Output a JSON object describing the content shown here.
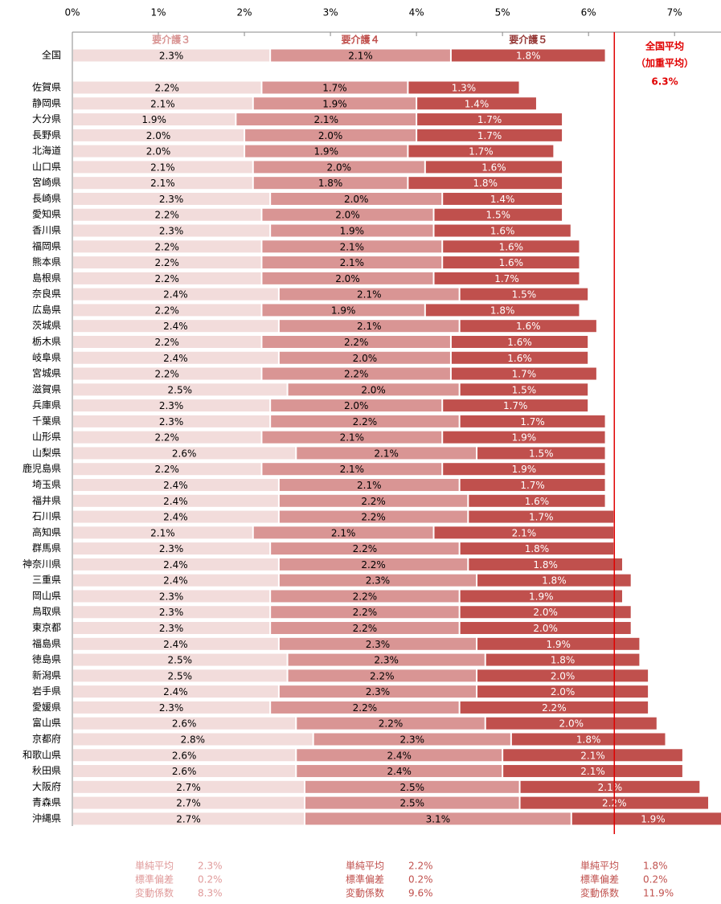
{
  "chart_data": {
    "type": "stacked_bar_horizontal",
    "categories": [
      "全国",
      "佐賀県",
      "静岡県",
      "大分県",
      "長野県",
      "北海道",
      "山口県",
      "宮崎県",
      "長崎県",
      "愛知県",
      "香川県",
      "福岡県",
      "熊本県",
      "島根県",
      "奈良県",
      "広島県",
      "茨城県",
      "栃木県",
      "岐阜県",
      "宮城県",
      "滋賀県",
      "兵庫県",
      "千葉県",
      "山形県",
      "山梨県",
      "鹿児島県",
      "埼玉県",
      "福井県",
      "石川県",
      "高知県",
      "群馬県",
      "神奈川県",
      "三重県",
      "岡山県",
      "鳥取県",
      "東京都",
      "福島県",
      "徳島県",
      "新潟県",
      "岩手県",
      "愛媛県",
      "富山県",
      "京都府",
      "和歌山県",
      "秋田県",
      "大阪府",
      "青森県",
      "沖縄県"
    ],
    "series": [
      {
        "name": "要介護３",
        "color": "#f2dcdb",
        "values": [
          2.3,
          2.2,
          2.1,
          1.9,
          2.0,
          2.0,
          2.1,
          2.1,
          2.3,
          2.2,
          2.3,
          2.2,
          2.2,
          2.2,
          2.4,
          2.2,
          2.4,
          2.2,
          2.4,
          2.2,
          2.5,
          2.3,
          2.3,
          2.2,
          2.6,
          2.2,
          2.4,
          2.4,
          2.4,
          2.1,
          2.3,
          2.4,
          2.4,
          2.3,
          2.3,
          2.3,
          2.4,
          2.5,
          2.5,
          2.4,
          2.3,
          2.6,
          2.8,
          2.6,
          2.6,
          2.7,
          2.7,
          2.7
        ],
        "value_labels": [
          "2.3%",
          "2.2%",
          "2.1%",
          "1.9%",
          "2.0%",
          "2.0%",
          "2.1%",
          "2.1%",
          "2.3%",
          "2.2%",
          "2.3%",
          "2.2%",
          "2.2%",
          "2.2%",
          "2.4%",
          "2.2%",
          "2.4%",
          "2.2%",
          "2.4%",
          "2.2%",
          "2.5%",
          "2.3%",
          "2.3%",
          "2.2%",
          "2.6%",
          "2.2%",
          "2.4%",
          "2.4%",
          "2.4%",
          "2.1%",
          "2.3%",
          "2.4%",
          "2.4%",
          "2.3%",
          "2.3%",
          "2.3%",
          "2.4%",
          "2.5%",
          "2.5%",
          "2.4%",
          "2.3%",
          "2.6%",
          "2.8%",
          "2.6%",
          "2.6%",
          "2.7%",
          "2.7%",
          "2.7%"
        ]
      },
      {
        "name": "要介護４",
        "color": "#d99594",
        "values": [
          2.1,
          1.7,
          1.9,
          2.1,
          2.0,
          1.9,
          2.0,
          1.8,
          2.0,
          2.0,
          1.9,
          2.1,
          2.1,
          2.0,
          2.1,
          1.9,
          2.1,
          2.2,
          2.0,
          2.2,
          2.0,
          2.0,
          2.2,
          2.1,
          2.1,
          2.1,
          2.1,
          2.2,
          2.2,
          2.1,
          2.2,
          2.2,
          2.3,
          2.2,
          2.2,
          2.2,
          2.3,
          2.3,
          2.2,
          2.3,
          2.2,
          2.2,
          2.3,
          2.4,
          2.4,
          2.5,
          2.5,
          3.1
        ],
        "value_labels": [
          "2.1%",
          "1.7%",
          "1.9%",
          "2.1%",
          "2.0%",
          "1.9%",
          "2.0%",
          "1.8%",
          "2.0%",
          "2.0%",
          "1.9%",
          "2.1%",
          "2.1%",
          "2.0%",
          "2.1%",
          "1.9%",
          "2.1%",
          "2.2%",
          "2.0%",
          "2.2%",
          "2.0%",
          "2.0%",
          "2.2%",
          "2.1%",
          "2.1%",
          "2.1%",
          "2.1%",
          "2.2%",
          "2.2%",
          "2.1%",
          "2.2%",
          "2.2%",
          "2.3%",
          "2.2%",
          "2.2%",
          "2.2%",
          "2.3%",
          "2.3%",
          "2.2%",
          "2.3%",
          "2.2%",
          "2.2%",
          "2.3%",
          "2.4%",
          "2.4%",
          "2.5%",
          "2.5%",
          "3.1%"
        ]
      },
      {
        "name": "要介護５",
        "color": "#c0504d",
        "values": [
          1.8,
          1.3,
          1.4,
          1.7,
          1.7,
          1.7,
          1.6,
          1.8,
          1.4,
          1.5,
          1.6,
          1.6,
          1.6,
          1.7,
          1.5,
          1.8,
          1.6,
          1.6,
          1.6,
          1.7,
          1.5,
          1.7,
          1.7,
          1.9,
          1.5,
          1.9,
          1.7,
          1.6,
          1.7,
          2.1,
          1.8,
          1.8,
          1.8,
          1.9,
          2.0,
          2.0,
          1.9,
          1.8,
          2.0,
          2.0,
          2.2,
          2.0,
          1.8,
          2.1,
          2.1,
          2.1,
          2.2,
          1.9
        ],
        "value_labels": [
          "1.8%",
          "1.3%",
          "1.4%",
          "1.7%",
          "1.7%",
          "1.7%",
          "1.6%",
          "1.8%",
          "1.4%",
          "1.5%",
          "1.6%",
          "1.6%",
          "1.6%",
          "1.7%",
          "1.5%",
          "1.8%",
          "1.6%",
          "1.6%",
          "1.6%",
          "1.7%",
          "1.5%",
          "1.7%",
          "1.7%",
          "1.9%",
          "1.5%",
          "1.9%",
          "1.7%",
          "1.6%",
          "1.7%",
          "2.1%",
          "1.8%",
          "1.8%",
          "1.8%",
          "1.9%",
          "2.0%",
          "2.0%",
          "1.9%",
          "1.8%",
          "2.0%",
          "2.0%",
          "2.2%",
          "2.0%",
          "1.8%",
          "2.1%",
          "2.1%",
          "2.1%",
          "2.2%",
          "1.9%"
        ]
      }
    ],
    "xlim": [
      0,
      7.54
    ],
    "xticks": [
      {
        "value": 0,
        "label": "0%"
      },
      {
        "value": 1,
        "label": "1%"
      },
      {
        "value": 2,
        "label": "2%"
      },
      {
        "value": 3,
        "label": "3%"
      },
      {
        "value": 4,
        "label": "4%"
      },
      {
        "value": 5,
        "label": "5%"
      },
      {
        "value": 6,
        "label": "6%"
      },
      {
        "value": 7,
        "label": "7%"
      }
    ],
    "reference_line": {
      "value": 6.3,
      "color": "#e00000",
      "label": [
        "全国平均",
        "（加重平均）"
      ],
      "value_label": "6.3%"
    },
    "summary": [
      [
        {
          "label": "単純平均",
          "text": "2.3%"
        },
        {
          "label": "標準偏差",
          "text": "0.2%"
        },
        {
          "label": "変動係数",
          "text": "8.3%"
        }
      ],
      [
        {
          "label": "単純平均",
          "text": "2.2%"
        },
        {
          "label": "標準偏差",
          "text": "0.2%"
        },
        {
          "label": "変動係数",
          "text": "9.6%"
        }
      ],
      [
        {
          "label": "単純平均",
          "text": "1.8%"
        },
        {
          "label": "標準偏差",
          "text": "0.2%"
        },
        {
          "label": "変動係数",
          "text": "11.9%"
        }
      ]
    ]
  }
}
